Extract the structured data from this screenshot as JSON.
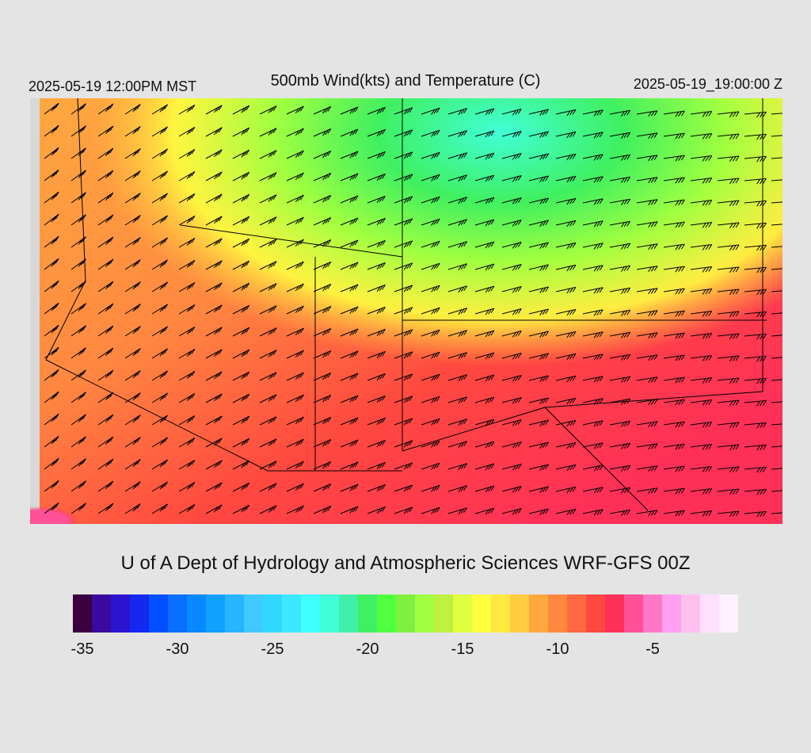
{
  "header": {
    "title": "500mb Wind(kts) and Temperature (C)",
    "local_time": "2025-05-19 12:00PM MST",
    "valid_time": "2025-05-19_19:00:00 Z"
  },
  "footer": {
    "credit": "U of A Dept of Hydrology and Atmospheric Sciences WRF-GFS 00Z"
  },
  "colorbar": {
    "colors": [
      "#3a0040",
      "#3a0aa0",
      "#2a14d0",
      "#1428f0",
      "#0050ff",
      "#0870ff",
      "#0a88ff",
      "#10a0ff",
      "#28b4ff",
      "#40c8ff",
      "#30d8ff",
      "#3ce8ff",
      "#40ffff",
      "#40ffd8",
      "#40f0a8",
      "#40f060",
      "#50ff40",
      "#80f040",
      "#a0ff40",
      "#c0f040",
      "#e0ff40",
      "#ffff40",
      "#ffe840",
      "#ffcc40",
      "#ffa840",
      "#ff8840",
      "#ff6840",
      "#ff4840",
      "#ff3058",
      "#ff5098",
      "#ff78c8",
      "#ffa0f0",
      "#ffc0f0",
      "#ffe0ff",
      "#fff0ff"
    ],
    "tick_labels": [
      "-35",
      "-30",
      "-25",
      "-20",
      "-15",
      "-10",
      "-5"
    ],
    "tick_positions_index": [
      1,
      6,
      11,
      16,
      21,
      26,
      31
    ]
  },
  "map": {
    "wind_units": "kts",
    "temperature_units": "C"
  }
}
